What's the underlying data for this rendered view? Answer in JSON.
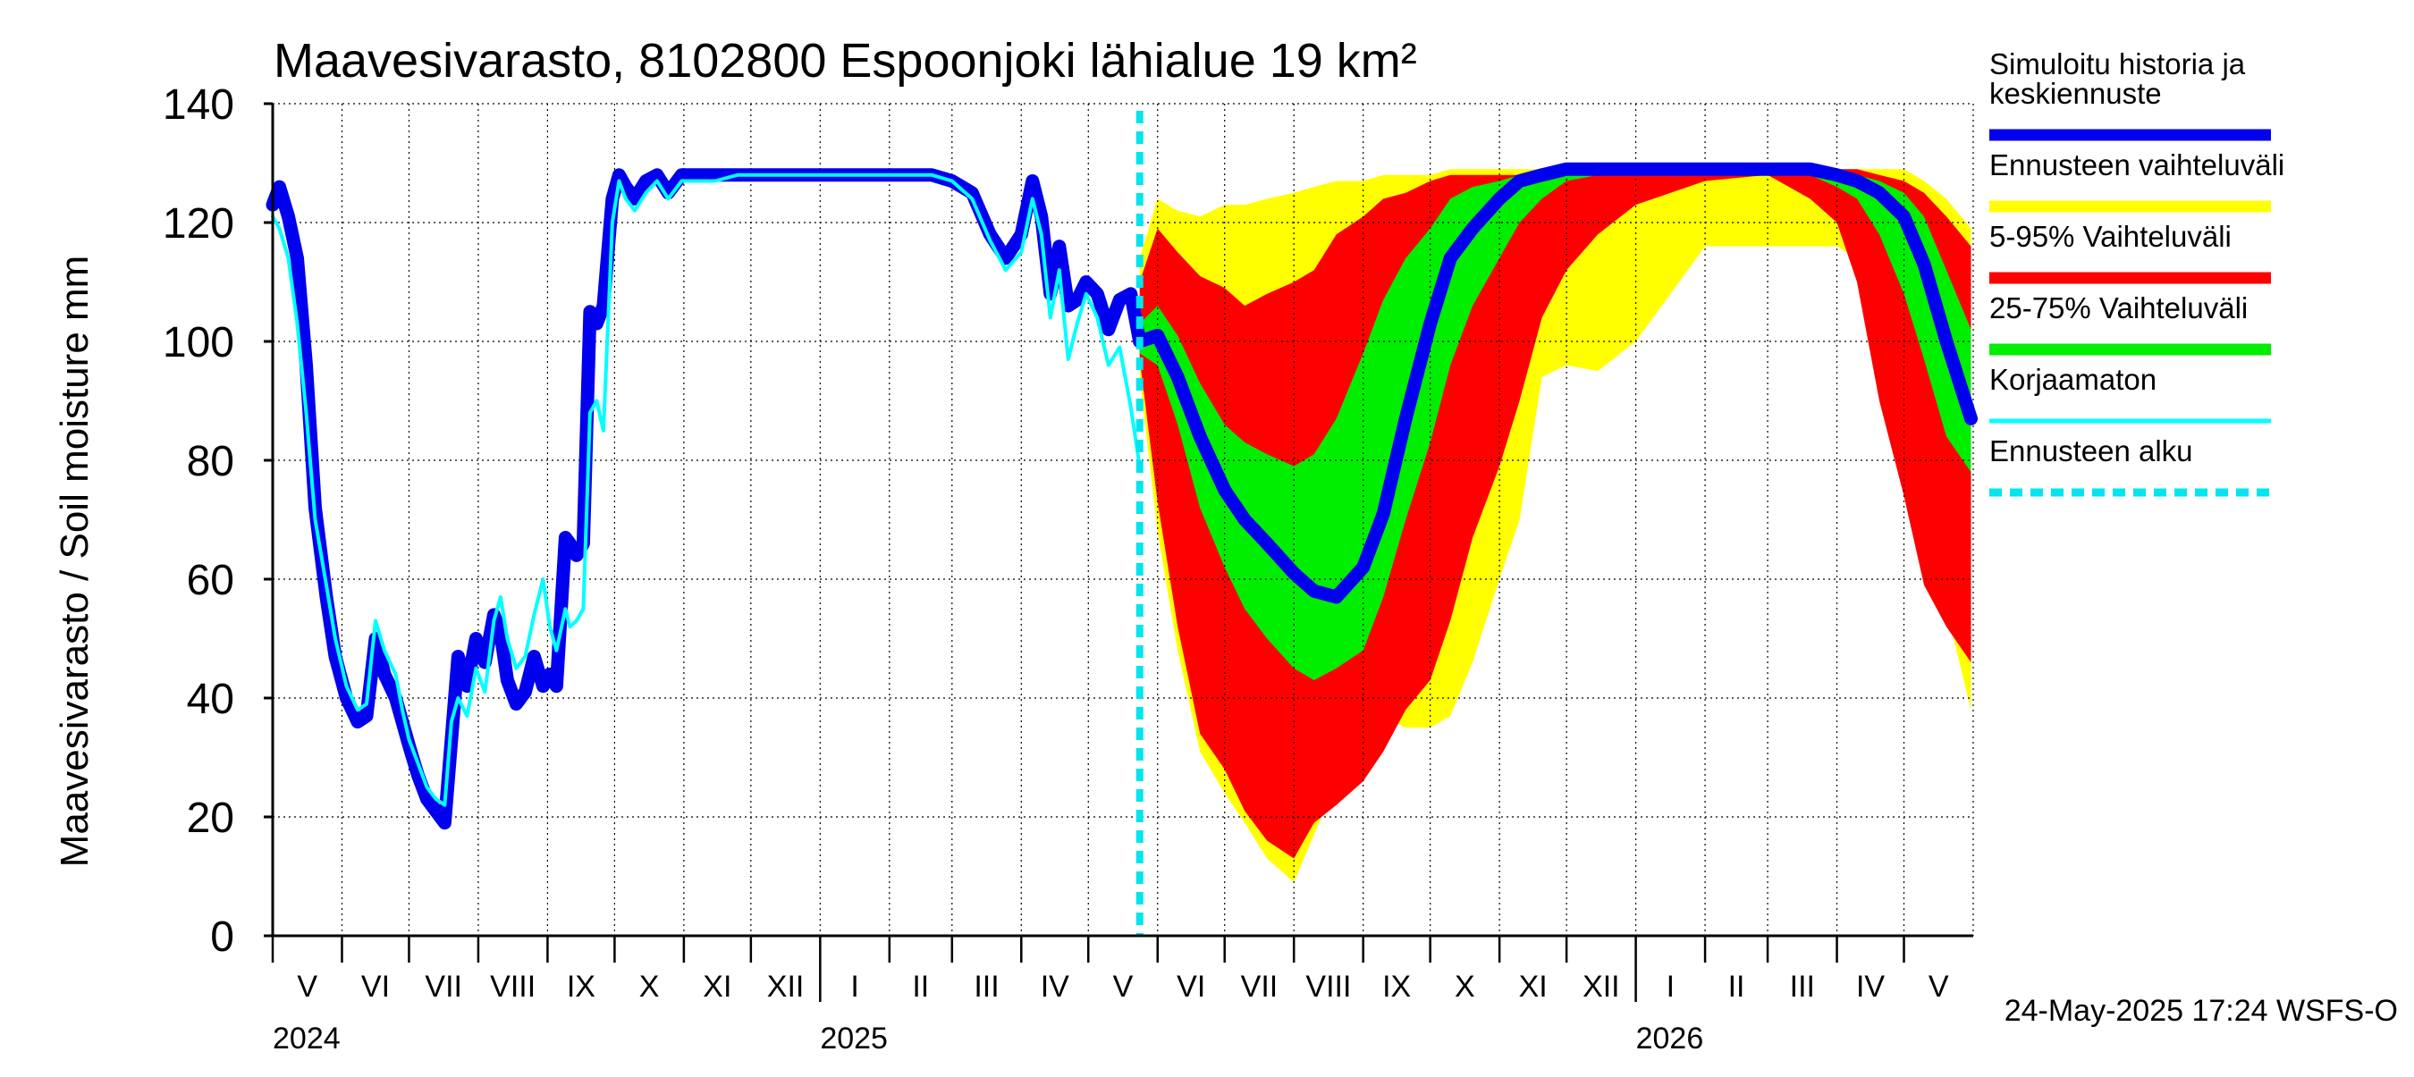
{
  "chart_data": {
    "type": "area",
    "title": "Maavesivarasto, 8102800 Espoonjoki lähialue 19 km²",
    "ylabel": "Maavesivarasto / Soil moisture   mm",
    "xlabel": "",
    "ylim": [
      0,
      140
    ],
    "yticks": [
      0,
      20,
      40,
      60,
      80,
      100,
      120,
      140
    ],
    "xlim": [
      "2024-05-01",
      "2026-05-31"
    ],
    "grid": true,
    "legend_position": "right",
    "footer": "24-May-2025 17:24 WSFS-O",
    "forecast_start": "2025-05-24",
    "months": [
      {
        "label": "V",
        "start": "2024-05-01"
      },
      {
        "label": "VI",
        "start": "2024-06-01"
      },
      {
        "label": "VII",
        "start": "2024-07-01"
      },
      {
        "label": "VIII",
        "start": "2024-08-01"
      },
      {
        "label": "IX",
        "start": "2024-09-01"
      },
      {
        "label": "X",
        "start": "2024-10-01"
      },
      {
        "label": "XI",
        "start": "2024-11-01"
      },
      {
        "label": "XII",
        "start": "2024-12-01"
      },
      {
        "label": "I",
        "start": "2025-01-01"
      },
      {
        "label": "II",
        "start": "2025-02-01"
      },
      {
        "label": "III",
        "start": "2025-03-01"
      },
      {
        "label": "IV",
        "start": "2025-04-01"
      },
      {
        "label": "V",
        "start": "2025-05-01"
      },
      {
        "label": "VI",
        "start": "2025-06-01"
      },
      {
        "label": "VII",
        "start": "2025-07-01"
      },
      {
        "label": "VIII",
        "start": "2025-08-01"
      },
      {
        "label": "IX",
        "start": "2025-09-01"
      },
      {
        "label": "X",
        "start": "2025-10-01"
      },
      {
        "label": "XI",
        "start": "2025-11-01"
      },
      {
        "label": "XII",
        "start": "2025-12-01"
      },
      {
        "label": "I",
        "start": "2026-01-01"
      },
      {
        "label": "II",
        "start": "2026-02-01"
      },
      {
        "label": "III",
        "start": "2026-03-01"
      },
      {
        "label": "IV",
        "start": "2026-04-01"
      },
      {
        "label": "V",
        "start": "2026-05-01"
      }
    ],
    "years": [
      {
        "label": "2024",
        "date": "2024-05-01"
      },
      {
        "label": "2025",
        "date": "2025-01-01"
      },
      {
        "label": "2026",
        "date": "2026-01-01"
      }
    ],
    "legend": [
      {
        "label": "Simuloitu historia ja keskiennuste",
        "lines": [
          "Simuloitu historia ja",
          "keskiennuste"
        ],
        "color": "#0000ee",
        "style": "line"
      },
      {
        "label": "Ennusteen vaihteluväli",
        "lines": [
          "Ennusteen vaihteluväli"
        ],
        "color": "#ffff00",
        "style": "band"
      },
      {
        "label": "5-95% Vaihteluväli",
        "lines": [
          "5-95% Vaihteluväli"
        ],
        "color": "#ff0000",
        "style": "band"
      },
      {
        "label": "25-75% Vaihteluväli",
        "lines": [
          "25-75% Vaihteluväli"
        ],
        "color": "#00ee00",
        "style": "band"
      },
      {
        "label": "Korjaamaton",
        "lines": [
          "Korjaamaton"
        ],
        "color": "#00ffff",
        "style": "thin"
      },
      {
        "label": "Ennusteen alku",
        "lines": [
          "Ennusteen alku"
        ],
        "color": "#00e5ee",
        "style": "dashed"
      }
    ],
    "colors": {
      "history": "#0000ee",
      "uncorrected": "#00ffff",
      "range": "#ffff00",
      "p5_95": "#ff0000",
      "p25_75": "#00ee00",
      "forecast_start": "#00e5ee",
      "grid": "#000000"
    },
    "series": [
      {
        "name": "Simuloitu historia ja keskiennuste",
        "key": "history",
        "x": [
          "2024-05-01",
          "2024-05-04",
          "2024-05-08",
          "2024-05-12",
          "2024-05-16",
          "2024-05-20",
          "2024-05-25",
          "2024-05-29",
          "2024-06-03",
          "2024-06-08",
          "2024-06-12",
          "2024-06-16",
          "2024-06-20",
          "2024-06-25",
          "2024-06-28",
          "2024-07-01",
          "2024-07-05",
          "2024-07-09",
          "2024-07-13",
          "2024-07-17",
          "2024-07-20",
          "2024-07-23",
          "2024-07-27",
          "2024-07-31",
          "2024-08-04",
          "2024-08-08",
          "2024-08-11",
          "2024-08-14",
          "2024-08-18",
          "2024-08-22",
          "2024-08-26",
          "2024-08-30",
          "2024-09-02",
          "2024-09-05",
          "2024-09-09",
          "2024-09-11",
          "2024-09-14",
          "2024-09-17",
          "2024-09-20",
          "2024-09-23",
          "2024-09-26",
          "2024-09-30",
          "2024-10-03",
          "2024-10-06",
          "2024-10-10",
          "2024-10-15",
          "2024-10-20",
          "2024-10-25",
          "2024-10-31",
          "2024-11-05",
          "2024-11-15",
          "2024-11-25",
          "2024-12-05",
          "2024-12-20",
          "2025-01-05",
          "2025-01-20",
          "2025-02-05",
          "2025-02-20",
          "2025-03-01",
          "2025-03-10",
          "2025-03-18",
          "2025-03-25",
          "2025-04-01",
          "2025-04-06",
          "2025-04-10",
          "2025-04-14",
          "2025-04-18",
          "2025-04-22",
          "2025-04-26",
          "2025-04-30",
          "2025-05-05",
          "2025-05-10",
          "2025-05-15",
          "2025-05-20",
          "2025-05-24"
        ],
        "values": [
          123,
          126,
          121,
          114,
          96,
          72,
          57,
          47,
          40,
          36,
          37,
          50,
          44,
          40,
          36,
          32,
          27,
          23,
          21,
          19,
          33,
          47,
          42,
          50,
          46,
          54,
          51,
          43,
          39,
          41,
          47,
          42,
          44,
          42,
          67,
          66,
          64,
          66,
          105,
          103,
          106,
          124,
          128,
          126,
          124,
          127,
          128,
          125,
          128,
          128,
          128,
          128,
          128,
          128,
          128,
          128,
          128,
          128,
          127,
          125,
          118,
          114,
          118,
          127,
          121,
          108,
          116,
          106,
          107,
          110,
          108,
          102,
          107,
          108,
          100
        ]
      },
      {
        "name": "Korjaamaton",
        "key": "uncorrected",
        "x": [
          "2024-05-01",
          "2024-05-04",
          "2024-05-08",
          "2024-05-12",
          "2024-05-16",
          "2024-05-20",
          "2024-05-25",
          "2024-05-29",
          "2024-06-03",
          "2024-06-08",
          "2024-06-12",
          "2024-06-16",
          "2024-06-20",
          "2024-06-25",
          "2024-06-28",
          "2024-07-01",
          "2024-07-05",
          "2024-07-09",
          "2024-07-13",
          "2024-07-17",
          "2024-07-20",
          "2024-07-23",
          "2024-07-27",
          "2024-07-31",
          "2024-08-04",
          "2024-08-08",
          "2024-08-11",
          "2024-08-14",
          "2024-08-18",
          "2024-08-22",
          "2024-08-26",
          "2024-08-30",
          "2024-09-02",
          "2024-09-05",
          "2024-09-09",
          "2024-09-11",
          "2024-09-14",
          "2024-09-17",
          "2024-09-20",
          "2024-09-23",
          "2024-09-26",
          "2024-09-30",
          "2024-10-03",
          "2024-10-06",
          "2024-10-10",
          "2024-10-15",
          "2024-10-20",
          "2024-10-25",
          "2024-10-31",
          "2024-11-05",
          "2024-11-15",
          "2024-11-25",
          "2024-12-05",
          "2024-12-20",
          "2025-01-05",
          "2025-01-20",
          "2025-02-05",
          "2025-02-20",
          "2025-03-01",
          "2025-03-10",
          "2025-03-18",
          "2025-03-25",
          "2025-04-01",
          "2025-04-06",
          "2025-04-10",
          "2025-04-14",
          "2025-04-18",
          "2025-04-22",
          "2025-04-26",
          "2025-04-30",
          "2025-05-05",
          "2025-05-10",
          "2025-05-15",
          "2025-05-20",
          "2025-05-24"
        ],
        "values": [
          121,
          119,
          114,
          103,
          88,
          70,
          59,
          50,
          42,
          38,
          39,
          53,
          48,
          44,
          38,
          33,
          29,
          25,
          23,
          22,
          36,
          40,
          37,
          45,
          41,
          53,
          57,
          50,
          45,
          47,
          54,
          60,
          52,
          48,
          55,
          52,
          53,
          55,
          88,
          90,
          85,
          120,
          127,
          124,
          122,
          125,
          127,
          124,
          127,
          127,
          127,
          128,
          128,
          128,
          128,
          128,
          128,
          128,
          127,
          124,
          117,
          112,
          115,
          124,
          118,
          104,
          112,
          97,
          103,
          108,
          104,
          96,
          99,
          89,
          79
        ]
      },
      {
        "name": "Keskiennuste",
        "key": "median",
        "x": [
          "2025-05-24",
          "2025-06-01",
          "2025-06-10",
          "2025-06-20",
          "2025-07-01",
          "2025-07-10",
          "2025-07-20",
          "2025-08-01",
          "2025-08-10",
          "2025-08-20",
          "2025-09-01",
          "2025-09-10",
          "2025-09-20",
          "2025-10-01",
          "2025-10-10",
          "2025-10-20",
          "2025-11-01",
          "2025-11-10",
          "2025-11-20",
          "2025-12-01",
          "2025-12-15",
          "2026-01-01",
          "2026-02-01",
          "2026-03-01",
          "2026-03-20",
          "2026-04-01",
          "2026-04-10",
          "2026-04-20",
          "2026-05-01",
          "2026-05-10",
          "2026-05-20",
          "2026-05-31"
        ],
        "values": [
          100,
          101,
          94,
          84,
          75,
          70,
          66,
          61,
          58,
          57,
          62,
          71,
          87,
          103,
          114,
          119,
          124,
          127,
          128,
          129,
          129,
          129,
          129,
          129,
          129,
          128,
          127,
          125,
          121,
          113,
          100,
          87
        ]
      },
      {
        "name": "Ennusteen vaihteluväli",
        "key": "range",
        "x": [
          "2025-05-24",
          "2025-06-01",
          "2025-06-10",
          "2025-06-20",
          "2025-07-01",
          "2025-07-10",
          "2025-07-20",
          "2025-08-01",
          "2025-08-10",
          "2025-08-20",
          "2025-09-01",
          "2025-09-10",
          "2025-09-20",
          "2025-10-01",
          "2025-10-10",
          "2025-10-20",
          "2025-11-01",
          "2025-11-10",
          "2025-11-20",
          "2025-12-01",
          "2025-12-15",
          "2026-01-01",
          "2026-02-01",
          "2026-03-01",
          "2026-03-20",
          "2026-04-01",
          "2026-04-10",
          "2026-04-20",
          "2026-05-01",
          "2026-05-10",
          "2026-05-20",
          "2026-05-31"
        ],
        "upper": [
          114,
          124,
          122,
          121,
          123,
          123,
          124,
          125,
          126,
          127,
          127,
          128,
          128,
          128,
          129,
          129,
          129,
          129,
          129,
          129,
          129,
          129,
          129,
          129,
          129,
          129,
          129,
          129,
          129,
          127,
          124,
          119
        ],
        "lower": [
          94,
          68,
          48,
          31,
          24,
          19,
          13,
          9,
          17,
          26,
          32,
          37,
          35,
          35,
          37,
          46,
          60,
          70,
          94,
          96,
          95,
          100,
          116,
          116,
          116,
          116,
          114,
          105,
          93,
          76,
          55,
          38
        ]
      },
      {
        "name": "5-95% Vaihteluväli",
        "key": "p5_95",
        "x": [
          "2025-05-24",
          "2025-06-01",
          "2025-06-10",
          "2025-06-20",
          "2025-07-01",
          "2025-07-10",
          "2025-07-20",
          "2025-08-01",
          "2025-08-10",
          "2025-08-20",
          "2025-09-01",
          "2025-09-10",
          "2025-09-20",
          "2025-10-01",
          "2025-10-10",
          "2025-10-20",
          "2025-11-01",
          "2025-11-10",
          "2025-11-20",
          "2025-12-01",
          "2025-12-15",
          "2026-01-01",
          "2026-02-01",
          "2026-03-01",
          "2026-03-20",
          "2026-04-01",
          "2026-04-10",
          "2026-04-20",
          "2026-05-01",
          "2026-05-10",
          "2026-05-20",
          "2026-05-31"
        ],
        "upper": [
          110,
          119,
          115,
          111,
          109,
          106,
          108,
          110,
          112,
          118,
          121,
          124,
          125,
          127,
          128,
          128,
          128,
          128,
          129,
          129,
          129,
          129,
          129,
          129,
          129,
          129,
          129,
          128,
          127,
          125,
          121,
          116
        ],
        "lower": [
          97,
          73,
          52,
          34,
          28,
          21,
          16,
          13,
          19,
          22,
          26,
          31,
          38,
          43,
          53,
          67,
          79,
          90,
          104,
          112,
          118,
          123,
          127,
          128,
          124,
          120,
          110,
          90,
          74,
          59,
          52,
          46
        ]
      },
      {
        "name": "25-75% Vaihteluväli",
        "key": "p25_75",
        "x": [
          "2025-05-24",
          "2025-06-01",
          "2025-06-10",
          "2025-06-20",
          "2025-07-01",
          "2025-07-10",
          "2025-07-20",
          "2025-08-01",
          "2025-08-10",
          "2025-08-20",
          "2025-09-01",
          "2025-09-10",
          "2025-09-20",
          "2025-10-01",
          "2025-10-10",
          "2025-10-20",
          "2025-11-01",
          "2025-11-10",
          "2025-11-20",
          "2025-12-01",
          "2025-12-15",
          "2026-01-01",
          "2026-02-01",
          "2026-03-01",
          "2026-03-20",
          "2026-04-01",
          "2026-04-10",
          "2026-04-20",
          "2026-05-01",
          "2026-05-10",
          "2026-05-20",
          "2026-05-31"
        ],
        "upper": [
          103,
          106,
          101,
          93,
          86,
          83,
          81,
          79,
          81,
          87,
          98,
          107,
          114,
          119,
          124,
          126,
          127,
          128,
          128,
          129,
          129,
          129,
          129,
          129,
          129,
          129,
          128,
          127,
          125,
          121,
          112,
          102
        ],
        "lower": [
          98,
          96,
          86,
          72,
          62,
          55,
          50,
          45,
          43,
          45,
          48,
          57,
          70,
          83,
          96,
          106,
          114,
          120,
          124,
          127,
          128,
          128,
          128,
          128,
          128,
          126,
          124,
          118,
          108,
          97,
          84,
          78
        ]
      }
    ]
  }
}
